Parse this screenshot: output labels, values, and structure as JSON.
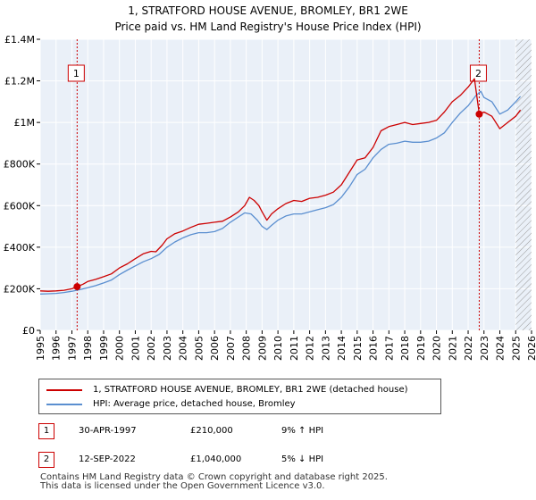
{
  "chart_data": {
    "type": "line",
    "title": "1, STRATFORD HOUSE AVENUE, BROMLEY, BR1 2WE",
    "subtitle": "Price paid vs. HM Land Registry's House Price Index (HPI)",
    "xlabel": "",
    "ylabel": "",
    "xlim": [
      1995,
      2026
    ],
    "ylim": [
      0,
      1400000
    ],
    "x_ticks": [
      "1995",
      "1996",
      "1997",
      "1998",
      "1999",
      "2000",
      "2001",
      "2002",
      "2003",
      "2004",
      "2005",
      "2006",
      "2007",
      "2008",
      "2009",
      "2010",
      "2011",
      "2012",
      "2013",
      "2014",
      "2015",
      "2016",
      "2017",
      "2018",
      "2019",
      "2020",
      "2021",
      "2022",
      "2023",
      "2024",
      "2025",
      "2026"
    ],
    "y_ticks": [
      {
        "value": 0,
        "label": "£0"
      },
      {
        "value": 200000,
        "label": "£200K"
      },
      {
        "value": 400000,
        "label": "£400K"
      },
      {
        "value": 600000,
        "label": "£600K"
      },
      {
        "value": 800000,
        "label": "£800K"
      },
      {
        "value": 1000000,
        "label": "£1M"
      },
      {
        "value": 1200000,
        "label": "£1.2M"
      },
      {
        "value": 1400000,
        "label": "£1.4M"
      }
    ],
    "series": [
      {
        "name": "1, STRATFORD HOUSE AVENUE, BROMLEY, BR1 2WE (detached house)",
        "color": "#cc0000",
        "points": [
          [
            1995.0,
            190000
          ],
          [
            1995.5,
            188000
          ],
          [
            1996.0,
            190000
          ],
          [
            1996.5,
            193000
          ],
          [
            1997.0,
            200000
          ],
          [
            1997.33,
            210000
          ],
          [
            1997.7,
            222000
          ],
          [
            1998.0,
            235000
          ],
          [
            1998.5,
            245000
          ],
          [
            1999.0,
            258000
          ],
          [
            1999.5,
            272000
          ],
          [
            2000.0,
            300000
          ],
          [
            2000.5,
            320000
          ],
          [
            2001.0,
            345000
          ],
          [
            2001.5,
            368000
          ],
          [
            2002.0,
            380000
          ],
          [
            2002.3,
            378000
          ],
          [
            2002.7,
            410000
          ],
          [
            2003.0,
            440000
          ],
          [
            2003.5,
            465000
          ],
          [
            2004.0,
            478000
          ],
          [
            2004.5,
            495000
          ],
          [
            2005.0,
            510000
          ],
          [
            2005.5,
            515000
          ],
          [
            2006.0,
            520000
          ],
          [
            2006.5,
            525000
          ],
          [
            2007.0,
            545000
          ],
          [
            2007.5,
            570000
          ],
          [
            2007.9,
            600000
          ],
          [
            2008.2,
            640000
          ],
          [
            2008.5,
            625000
          ],
          [
            2008.8,
            600000
          ],
          [
            2009.0,
            570000
          ],
          [
            2009.3,
            530000
          ],
          [
            2009.6,
            560000
          ],
          [
            2010.0,
            585000
          ],
          [
            2010.5,
            610000
          ],
          [
            2011.0,
            625000
          ],
          [
            2011.5,
            620000
          ],
          [
            2012.0,
            635000
          ],
          [
            2012.5,
            640000
          ],
          [
            2013.0,
            650000
          ],
          [
            2013.5,
            665000
          ],
          [
            2014.0,
            700000
          ],
          [
            2014.5,
            760000
          ],
          [
            2015.0,
            820000
          ],
          [
            2015.5,
            830000
          ],
          [
            2016.0,
            880000
          ],
          [
            2016.5,
            960000
          ],
          [
            2017.0,
            980000
          ],
          [
            2017.5,
            990000
          ],
          [
            2018.0,
            1000000
          ],
          [
            2018.5,
            990000
          ],
          [
            2019.0,
            995000
          ],
          [
            2019.5,
            1000000
          ],
          [
            2020.0,
            1010000
          ],
          [
            2020.5,
            1050000
          ],
          [
            2021.0,
            1100000
          ],
          [
            2021.5,
            1130000
          ],
          [
            2022.0,
            1170000
          ],
          [
            2022.4,
            1210000
          ],
          [
            2022.7,
            1040000
          ],
          [
            2023.0,
            1050000
          ],
          [
            2023.5,
            1030000
          ],
          [
            2024.0,
            970000
          ],
          [
            2024.5,
            1000000
          ],
          [
            2025.0,
            1030000
          ],
          [
            2025.3,
            1060000
          ]
        ]
      },
      {
        "name": "HPI: Average price, detached house, Bromley",
        "color": "#5b8fd0",
        "points": [
          [
            1995.0,
            175000
          ],
          [
            1995.5,
            176000
          ],
          [
            1996.0,
            178000
          ],
          [
            1996.5,
            182000
          ],
          [
            1997.0,
            188000
          ],
          [
            1997.5,
            196000
          ],
          [
            1998.0,
            205000
          ],
          [
            1998.5,
            215000
          ],
          [
            1999.0,
            228000
          ],
          [
            1999.5,
            242000
          ],
          [
            2000.0,
            268000
          ],
          [
            2000.5,
            290000
          ],
          [
            2001.0,
            310000
          ],
          [
            2001.5,
            330000
          ],
          [
            2002.0,
            345000
          ],
          [
            2002.5,
            365000
          ],
          [
            2003.0,
            400000
          ],
          [
            2003.5,
            425000
          ],
          [
            2004.0,
            445000
          ],
          [
            2004.5,
            460000
          ],
          [
            2005.0,
            470000
          ],
          [
            2005.5,
            470000
          ],
          [
            2006.0,
            475000
          ],
          [
            2006.5,
            490000
          ],
          [
            2007.0,
            520000
          ],
          [
            2007.5,
            545000
          ],
          [
            2007.9,
            565000
          ],
          [
            2008.3,
            560000
          ],
          [
            2008.7,
            530000
          ],
          [
            2009.0,
            500000
          ],
          [
            2009.3,
            485000
          ],
          [
            2009.6,
            505000
          ],
          [
            2010.0,
            530000
          ],
          [
            2010.5,
            550000
          ],
          [
            2011.0,
            560000
          ],
          [
            2011.5,
            560000
          ],
          [
            2012.0,
            570000
          ],
          [
            2012.5,
            580000
          ],
          [
            2013.0,
            590000
          ],
          [
            2013.5,
            605000
          ],
          [
            2014.0,
            640000
          ],
          [
            2014.5,
            690000
          ],
          [
            2015.0,
            750000
          ],
          [
            2015.5,
            775000
          ],
          [
            2016.0,
            830000
          ],
          [
            2016.5,
            870000
          ],
          [
            2017.0,
            895000
          ],
          [
            2017.5,
            900000
          ],
          [
            2018.0,
            910000
          ],
          [
            2018.5,
            905000
          ],
          [
            2019.0,
            905000
          ],
          [
            2019.5,
            910000
          ],
          [
            2020.0,
            925000
          ],
          [
            2020.5,
            950000
          ],
          [
            2021.0,
            1000000
          ],
          [
            2021.5,
            1045000
          ],
          [
            2022.0,
            1080000
          ],
          [
            2022.5,
            1130000
          ],
          [
            2022.8,
            1150000
          ],
          [
            2023.0,
            1120000
          ],
          [
            2023.5,
            1100000
          ],
          [
            2024.0,
            1040000
          ],
          [
            2024.5,
            1060000
          ],
          [
            2025.0,
            1100000
          ],
          [
            2025.3,
            1125000
          ]
        ]
      }
    ],
    "sales": [
      {
        "label": "1",
        "date": "30-APR-1997",
        "year": 1997.33,
        "price": 210000,
        "price_text": "£210,000",
        "hpi_text": "9% ↑ HPI"
      },
      {
        "label": "2",
        "date": "12-SEP-2022",
        "year": 2022.7,
        "price": 1040000,
        "price_text": "£1,040,000",
        "hpi_text": "5% ↓ HPI"
      }
    ],
    "hatch_from": 2025.0,
    "grid": true,
    "legend": "bottom"
  },
  "footer": {
    "line1": "Contains HM Land Registry data © Crown copyright and database right 2025.",
    "line2": "This data is licensed under the Open Government Licence v3.0."
  },
  "colors": {
    "price_line": "#cc0000",
    "hpi_line": "#5b8fd0",
    "plot_bg": "#eaf0f8",
    "grid": "#ffffff"
  }
}
